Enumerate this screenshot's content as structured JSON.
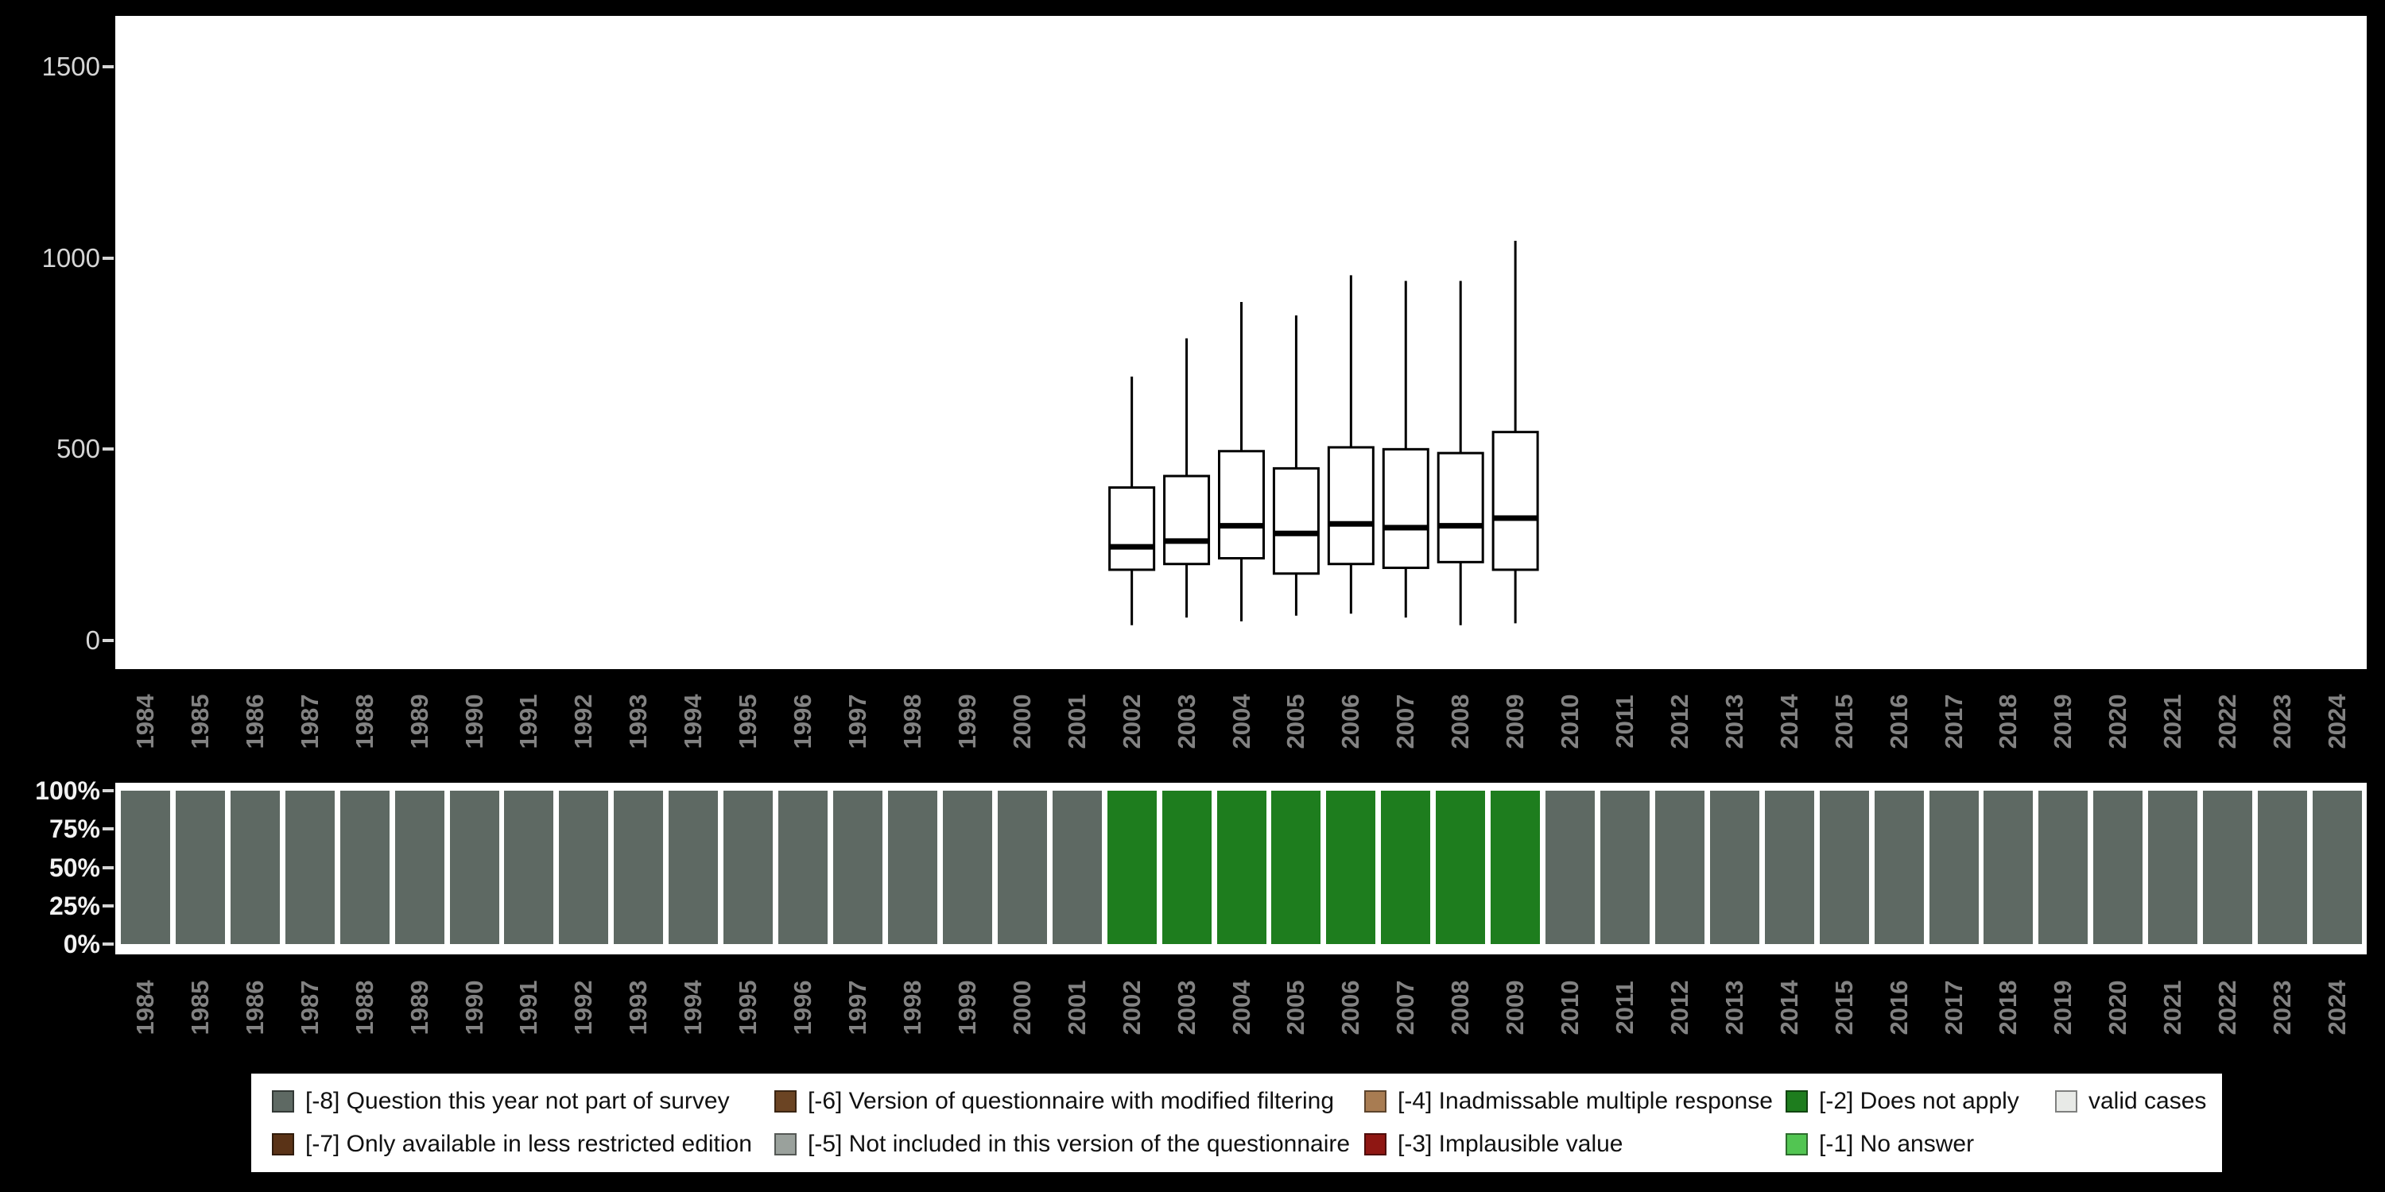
{
  "category_colors": {
    "-8": "#5e6963",
    "-7": "#5a3317",
    "-6": "#6b4423",
    "-5": "#9aa19c",
    "-4": "#a87c52",
    "-3": "#8f1713",
    "-2": "#1e7d1e",
    "-1": "#52c552",
    "valid": "#e8eae7"
  },
  "chart_data": [
    {
      "type": "boxplot",
      "title": "",
      "xlabel": "",
      "ylabel": "",
      "ylim": [
        0,
        1600
      ],
      "yticks": [
        0,
        500,
        1000,
        1500
      ],
      "grid": false,
      "x": [
        1984,
        1985,
        1986,
        1987,
        1988,
        1989,
        1990,
        1991,
        1992,
        1993,
        1994,
        1995,
        1996,
        1997,
        1998,
        1999,
        2000,
        2001,
        2002,
        2003,
        2004,
        2005,
        2006,
        2007,
        2008,
        2009,
        2010,
        2011,
        2012,
        2013,
        2014,
        2015,
        2016,
        2017,
        2018,
        2019,
        2020,
        2021,
        2022,
        2023,
        2024
      ],
      "boxes": [
        {
          "year": 2002,
          "whisker_low": 40,
          "q1": 185,
          "median": 245,
          "q3": 400,
          "whisker_high": 690
        },
        {
          "year": 2003,
          "whisker_low": 60,
          "q1": 200,
          "median": 260,
          "q3": 430,
          "whisker_high": 790
        },
        {
          "year": 2004,
          "whisker_low": 50,
          "q1": 215,
          "median": 300,
          "q3": 495,
          "whisker_high": 885
        },
        {
          "year": 2005,
          "whisker_low": 65,
          "q1": 175,
          "median": 280,
          "q3": 450,
          "whisker_high": 850
        },
        {
          "year": 2006,
          "whisker_low": 70,
          "q1": 200,
          "median": 305,
          "q3": 505,
          "whisker_high": 955
        },
        {
          "year": 2007,
          "whisker_low": 60,
          "q1": 190,
          "median": 295,
          "q3": 500,
          "whisker_high": 940
        },
        {
          "year": 2008,
          "whisker_low": 40,
          "q1": 205,
          "median": 300,
          "q3": 490,
          "whisker_high": 940
        },
        {
          "year": 2009,
          "whisker_low": 45,
          "q1": 185,
          "median": 320,
          "q3": 545,
          "whisker_high": 1045
        }
      ]
    },
    {
      "type": "bar",
      "stacked": true,
      "percent": true,
      "title": "",
      "xlabel": "",
      "ylabel": "",
      "yticks": [
        "100%",
        "75%",
        "50%",
        "25%",
        "0%"
      ],
      "categories": [
        1984,
        1985,
        1986,
        1987,
        1988,
        1989,
        1990,
        1991,
        1992,
        1993,
        1994,
        1995,
        1996,
        1997,
        1998,
        1999,
        2000,
        2001,
        2002,
        2003,
        2004,
        2005,
        2006,
        2007,
        2008,
        2009,
        2010,
        2011,
        2012,
        2013,
        2014,
        2015,
        2016,
        2017,
        2018,
        2019,
        2020,
        2021,
        2022,
        2023,
        2024
      ],
      "series": [
        {
          "name": "[-8] Question this year not part of survey",
          "code": "-8",
          "values": [
            100,
            100,
            100,
            100,
            100,
            100,
            100,
            100,
            100,
            100,
            100,
            100,
            100,
            100,
            100,
            100,
            100,
            100,
            0,
            0,
            0,
            0,
            0,
            0,
            0,
            0,
            100,
            100,
            100,
            100,
            100,
            100,
            100,
            100,
            100,
            100,
            100,
            100,
            100,
            100,
            100
          ]
        },
        {
          "name": "[-2] Does not apply",
          "code": "-2",
          "values": [
            0,
            0,
            0,
            0,
            0,
            0,
            0,
            0,
            0,
            0,
            0,
            0,
            0,
            0,
            0,
            0,
            0,
            0,
            100,
            100,
            100,
            100,
            100,
            100,
            100,
            100,
            0,
            0,
            0,
            0,
            0,
            0,
            0,
            0,
            0,
            0,
            0,
            0,
            0,
            0,
            0
          ]
        }
      ]
    }
  ],
  "legend": {
    "columns": [
      [
        {
          "code": "-8",
          "label": "[-8] Question this year not part of survey"
        },
        {
          "code": "-7",
          "label": "[-7] Only available in less restricted edition"
        }
      ],
      [
        {
          "code": "-6",
          "label": "[-6] Version of questionnaire with modified filtering"
        },
        {
          "code": "-5",
          "label": "[-5] Not included in this version of the questionnaire"
        }
      ],
      [
        {
          "code": "-4",
          "label": "[-4] Inadmissable multiple response"
        },
        {
          "code": "-3",
          "label": "[-3] Implausible value"
        }
      ],
      [
        {
          "code": "-2",
          "label": "[-2] Does not apply"
        },
        {
          "code": "-1",
          "label": "[-1] No answer"
        }
      ],
      [
        {
          "code": "valid",
          "label": "valid cases"
        }
      ]
    ]
  }
}
